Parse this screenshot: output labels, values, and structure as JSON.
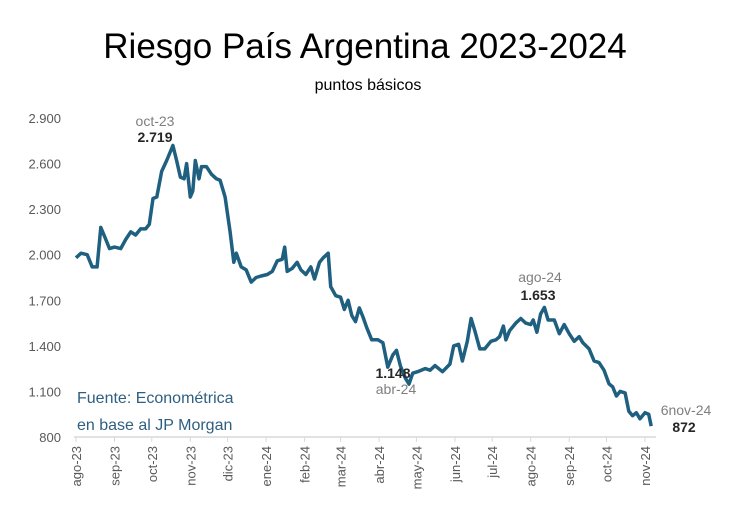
{
  "chart_data": {
    "type": "line",
    "title": "Riesgo País Argentina 2023-2024",
    "subtitle": "puntos básicos",
    "xlabel": "",
    "ylabel": "",
    "ylim": [
      800,
      2900
    ],
    "y_ticks": [
      "800",
      "1.100",
      "1.400",
      "1.700",
      "2.000",
      "2.300",
      "2.600",
      "2.900"
    ],
    "y_tick_values": [
      800,
      1100,
      1400,
      1700,
      2000,
      2300,
      2600,
      2900
    ],
    "x_ticks": [
      "ago-23",
      "sep-23",
      "oct-23",
      "nov-23",
      "dic-23",
      "ene-24",
      "feb-24",
      "mar-24",
      "abr-24",
      "may-24",
      "jun-24",
      "jul-24",
      "ago-24",
      "sep-24",
      "oct-24",
      "nov-24"
    ],
    "x_tick_dates": [
      "2023-08-01",
      "2023-09-01",
      "2023-10-01",
      "2023-11-01",
      "2023-12-01",
      "2024-01-01",
      "2024-02-01",
      "2024-03-01",
      "2024-04-01",
      "2024-05-01",
      "2024-06-01",
      "2024-07-01",
      "2024-08-01",
      "2024-09-01",
      "2024-10-01",
      "2024-11-01"
    ],
    "grid": false,
    "line_color": "#1f5f80",
    "series": [
      {
        "x": [
          "2023-08-01",
          "2023-08-05",
          "2023-08-10",
          "2023-08-14",
          "2023-08-18",
          "2023-08-21",
          "2023-08-24",
          "2023-08-28",
          "2023-09-01",
          "2023-09-06",
          "2023-09-10",
          "2023-09-14",
          "2023-09-18",
          "2023-09-22",
          "2023-09-26",
          "2023-09-29",
          "2023-10-02",
          "2023-10-05",
          "2023-10-09",
          "2023-10-13",
          "2023-10-18",
          "2023-10-21",
          "2023-10-24",
          "2023-10-27",
          "2023-10-29",
          "2023-11-01",
          "2023-11-03",
          "2023-11-05",
          "2023-11-08",
          "2023-11-10",
          "2023-11-14",
          "2023-11-18",
          "2023-11-22",
          "2023-11-25",
          "2023-11-29",
          "2023-12-03",
          "2023-12-06",
          "2023-12-08",
          "2023-12-12",
          "2023-12-16",
          "2023-12-20",
          "2023-12-24",
          "2023-12-28",
          "2024-01-02",
          "2024-01-06",
          "2024-01-10",
          "2024-01-14",
          "2024-01-16",
          "2024-01-18",
          "2024-01-22",
          "2024-01-26",
          "2024-01-29",
          "2024-02-02",
          "2024-02-06",
          "2024-02-09",
          "2024-02-13",
          "2024-02-16",
          "2024-02-20",
          "2024-02-22",
          "2024-02-26",
          "2024-03-01",
          "2024-03-04",
          "2024-03-07",
          "2024-03-10",
          "2024-03-13",
          "2024-03-16",
          "2024-03-19",
          "2024-03-22",
          "2024-03-26",
          "2024-03-31",
          "2024-04-04",
          "2024-04-08",
          "2024-04-12",
          "2024-04-15",
          "2024-04-18",
          "2024-04-22",
          "2024-04-25",
          "2024-04-28",
          "2024-05-02",
          "2024-05-08",
          "2024-05-12",
          "2024-05-16",
          "2024-05-22",
          "2024-05-28",
          "2024-05-31",
          "2024-06-04",
          "2024-06-07",
          "2024-06-11",
          "2024-06-14",
          "2024-06-17",
          "2024-06-21",
          "2024-06-25",
          "2024-06-30",
          "2024-07-04",
          "2024-07-07",
          "2024-07-10",
          "2024-07-12",
          "2024-07-15",
          "2024-07-20",
          "2024-07-24",
          "2024-07-28",
          "2024-08-01",
          "2024-08-03",
          "2024-08-06",
          "2024-08-09",
          "2024-08-12",
          "2024-08-15",
          "2024-08-20",
          "2024-08-24",
          "2024-08-28",
          "2024-09-01",
          "2024-09-05",
          "2024-09-09",
          "2024-09-12",
          "2024-09-17",
          "2024-09-21",
          "2024-09-25",
          "2024-09-29",
          "2024-10-03",
          "2024-10-06",
          "2024-10-09",
          "2024-10-12",
          "2024-10-16",
          "2024-10-19",
          "2024-10-22",
          "2024-10-25",
          "2024-10-28",
          "2024-11-01",
          "2024-11-04",
          "2024-11-06"
        ],
        "y": [
          1980,
          2010,
          2000,
          1920,
          1920,
          2180,
          2120,
          2040,
          2050,
          2040,
          2100,
          2150,
          2130,
          2170,
          2170,
          2200,
          2370,
          2380,
          2550,
          2620,
          2719,
          2620,
          2510,
          2500,
          2600,
          2380,
          2420,
          2620,
          2500,
          2580,
          2580,
          2530,
          2500,
          2490,
          2380,
          2150,
          1950,
          2010,
          1920,
          1900,
          1820,
          1850,
          1860,
          1870,
          1890,
          1960,
          1970,
          2050,
          1890,
          1910,
          1950,
          1900,
          1870,
          1920,
          1840,
          1950,
          1980,
          2010,
          1790,
          1730,
          1720,
          1640,
          1700,
          1600,
          1560,
          1650,
          1590,
          1520,
          1440,
          1440,
          1420,
          1260,
          1340,
          1370,
          1270,
          1190,
          1148,
          1220,
          1230,
          1250,
          1240,
          1270,
          1230,
          1280,
          1400,
          1410,
          1300,
          1430,
          1580,
          1500,
          1380,
          1380,
          1430,
          1440,
          1460,
          1530,
          1440,
          1500,
          1550,
          1580,
          1550,
          1540,
          1570,
          1490,
          1610,
          1653,
          1570,
          1570,
          1480,
          1540,
          1480,
          1430,
          1460,
          1420,
          1380,
          1300,
          1290,
          1240,
          1150,
          1130,
          1070,
          1100,
          1090,
          970,
          940,
          960,
          920,
          960,
          950,
          872
        ]
      }
    ],
    "annotations": [
      {
        "date_label": "oct-23",
        "value_label": "2.719"
      },
      {
        "date_label": "ago-24",
        "value_label": "1.653"
      },
      {
        "date_label": "abr-24",
        "value_label": "1.148"
      },
      {
        "date_label": "6nov-24",
        "value_label": "872"
      }
    ],
    "source": [
      "Fuente: Econométrica",
      "en base al JP Morgan"
    ]
  }
}
